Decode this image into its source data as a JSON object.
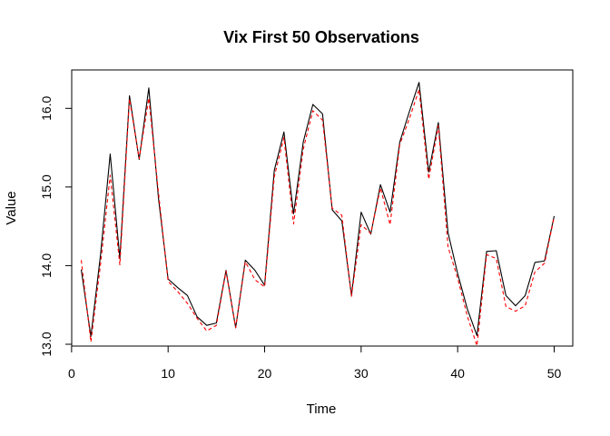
{
  "chart_data": {
    "type": "line",
    "title": "Vix First 50 Observations",
    "xlabel": "Time",
    "ylabel": "Value",
    "xlim": [
      1,
      50
    ],
    "ylim": [
      13.0,
      16.35
    ],
    "x_ticks": [
      0,
      10,
      20,
      30,
      40,
      50
    ],
    "x_tick_labels": [
      "0",
      "10",
      "20",
      "30",
      "40",
      "50"
    ],
    "y_ticks": [
      13.0,
      14.0,
      15.0,
      16.0
    ],
    "y_tick_labels": [
      "13.0",
      "14.0",
      "15.0",
      "16.0"
    ],
    "grid": false,
    "legend": "none",
    "x": [
      1,
      2,
      3,
      4,
      5,
      6,
      7,
      8,
      9,
      10,
      11,
      12,
      13,
      14,
      15,
      16,
      17,
      18,
      19,
      20,
      21,
      22,
      23,
      24,
      25,
      26,
      27,
      28,
      29,
      30,
      31,
      32,
      33,
      34,
      35,
      36,
      37,
      38,
      39,
      40,
      41,
      42,
      43,
      44,
      45,
      46,
      47,
      48,
      49,
      50
    ],
    "series": [
      {
        "color": "#000000",
        "style": "solid",
        "values": [
          13.95,
          13.1,
          14.14,
          15.42,
          14.09,
          16.16,
          15.35,
          16.26,
          14.86,
          13.83,
          13.72,
          13.62,
          13.35,
          13.24,
          13.27,
          13.94,
          13.21,
          14.07,
          13.94,
          13.75,
          15.21,
          15.7,
          14.66,
          15.57,
          16.05,
          15.93,
          14.71,
          14.57,
          13.62,
          14.68,
          14.4,
          15.03,
          14.68,
          15.57,
          15.96,
          16.33,
          15.19,
          15.82,
          14.42,
          13.9,
          13.45,
          13.11,
          14.18,
          14.19,
          13.62,
          13.49,
          13.62,
          14.04,
          14.06,
          14.63
        ]
      },
      {
        "color": "#ff0000",
        "style": "dashed",
        "values": [
          14.07,
          13.03,
          14.02,
          15.15,
          14.01,
          16.12,
          15.36,
          16.13,
          14.93,
          13.8,
          13.67,
          13.52,
          13.33,
          13.17,
          13.24,
          13.93,
          13.21,
          14.05,
          13.82,
          13.73,
          15.13,
          15.63,
          14.53,
          15.48,
          15.97,
          15.85,
          14.73,
          14.64,
          13.61,
          14.52,
          14.41,
          14.99,
          14.52,
          15.54,
          15.87,
          16.24,
          15.1,
          15.78,
          14.24,
          13.84,
          13.36,
          12.98,
          14.14,
          14.09,
          13.48,
          13.42,
          13.49,
          13.92,
          14.03,
          14.62
        ]
      }
    ]
  }
}
